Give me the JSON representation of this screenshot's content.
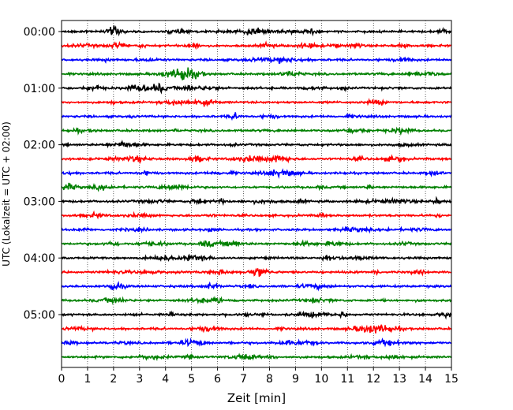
{
  "chart_data": {
    "type": "line",
    "xlabel": "Zeit  [min]",
    "ylabel": "UTC (Lokalzeit = UTC + 02:00)",
    "xlim": [
      0,
      15
    ],
    "x_ticks": [
      "0",
      "1",
      "2",
      "3",
      "4",
      "5",
      "6",
      "7",
      "8",
      "9",
      "10",
      "11",
      "12",
      "13",
      "14",
      "15"
    ],
    "y_tick_labels": [
      "00:00",
      "01:00",
      "02:00",
      "03:00",
      "04:00",
      "05:00"
    ],
    "trace_count": 24,
    "traces_per_hour": 4,
    "trace_minutes": 15,
    "trace_colors": [
      "#000000",
      "#ff0000",
      "#0000ff",
      "#008000"
    ],
    "vertical_grid": true,
    "grid_style": "dotted"
  }
}
